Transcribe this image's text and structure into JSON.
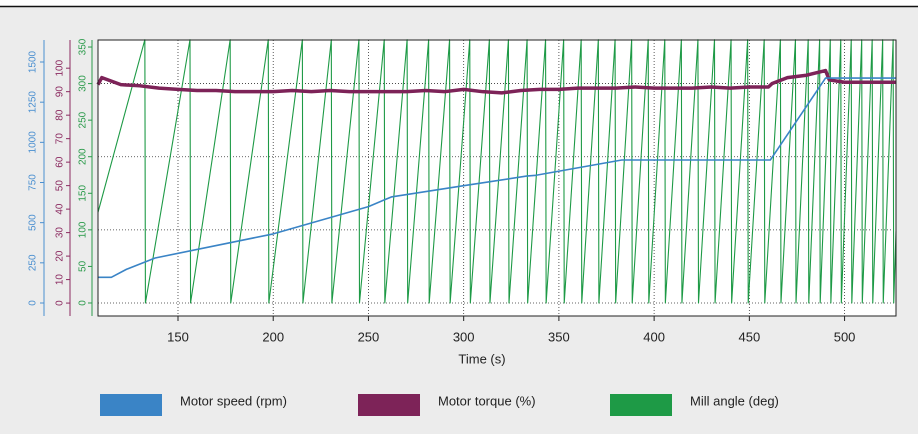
{
  "chart_data": {
    "type": "line",
    "xlabel": "Time (s)",
    "xlim": [
      108,
      527
    ],
    "xticks": [
      150,
      200,
      250,
      300,
      350,
      400,
      450,
      500
    ],
    "ylim": [
      -81,
      1637
    ],
    "yticks": [
      0,
      250,
      500,
      750,
      1000,
      1250,
      1500
    ],
    "y2lim": [
      -5.5,
      112
    ],
    "y2ticks": [
      0,
      10,
      20,
      30,
      40,
      50,
      60,
      70,
      80,
      90,
      100
    ],
    "y3lim": [
      -17.8,
      359.6
    ],
    "y3ticks": [
      0,
      50,
      100,
      150,
      200,
      250,
      300,
      350
    ],
    "grid": true,
    "legend": "bottom",
    "series": [
      {
        "name": "Motor speed (rpm)",
        "color": "#3a84c6",
        "axis": "y",
        "x": [
          108,
          115,
          123,
          138,
          200,
          250,
          262,
          300,
          333,
          338,
          383,
          461,
          490,
          527
        ],
        "values": [
          160,
          160,
          210,
          280,
          430,
          600,
          660,
          730,
          790,
          795,
          890,
          890,
          1400,
          1400
        ]
      },
      {
        "name": "Motor torque (%)",
        "color": "#7d2358",
        "axis": "y2",
        "x": [
          108,
          110,
          120,
          130,
          140,
          150,
          160,
          170,
          180,
          190,
          200,
          210,
          220,
          230,
          240,
          250,
          260,
          270,
          280,
          290,
          300,
          310,
          320,
          330,
          340,
          350,
          360,
          370,
          380,
          390,
          400,
          410,
          420,
          430,
          440,
          450,
          460,
          462,
          470,
          480,
          490,
          492,
          500,
          510,
          520,
          527
        ],
        "values": [
          93,
          96,
          93,
          92.5,
          91.5,
          91,
          90.5,
          90.5,
          90,
          90,
          90,
          90.5,
          90,
          90.5,
          90,
          90,
          90,
          90,
          90.5,
          90,
          91,
          90,
          89.5,
          90.5,
          91,
          91,
          91.5,
          91.5,
          91.5,
          92,
          91.5,
          91.5,
          91.5,
          92,
          91.5,
          92,
          92,
          93.5,
          96,
          97,
          99,
          95,
          94,
          94,
          94,
          94
        ]
      },
      {
        "name": "Mill angle (deg)",
        "color": "#1e9a46",
        "axis": "y3",
        "x": [
          108,
          132.6,
          132.9,
          156.3,
          156.6,
          177.4,
          177.7,
          197.4,
          197.7,
          215.3,
          215.6,
          230.5,
          230.8,
          245,
          245.3,
          258.3,
          258.6,
          270.3,
          270.6,
          281.6,
          281.9,
          292.6,
          292.9,
          303.2,
          303.5,
          313.5,
          313.8,
          323.5,
          323.8,
          333.3,
          333.6,
          343,
          343.3,
          352.5,
          352.8,
          361.7,
          362,
          370.7,
          371,
          379.5,
          379.8,
          388.2,
          388.5,
          396.9,
          397.2,
          405.6,
          405.9,
          414.3,
          414.6,
          423,
          423.3,
          431.7,
          432,
          440.4,
          440.7,
          449.1,
          449.4,
          457.8,
          458.1,
          466.3,
          466.6,
          474.2,
          474.5,
          480.9,
          481.2,
          486.9,
          487.2,
          492.5,
          492.8,
          498,
          498.3,
          503.5,
          503.8,
          509,
          509.3,
          514.5,
          514.8,
          520,
          520.3,
          525.5,
          525.8,
          527
        ],
        "values": [
          124,
          360,
          0,
          360,
          0,
          360,
          0,
          360,
          0,
          360,
          0,
          360,
          0,
          360,
          0,
          360,
          0,
          360,
          0,
          360,
          0,
          360,
          0,
          360,
          0,
          360,
          0,
          360,
          0,
          360,
          0,
          360,
          0,
          360,
          0,
          360,
          0,
          360,
          0,
          360,
          0,
          360,
          0,
          360,
          0,
          360,
          0,
          360,
          0,
          360,
          0,
          360,
          0,
          360,
          0,
          360,
          0,
          360,
          0,
          360,
          0,
          360,
          0,
          360,
          0,
          360,
          0,
          360,
          0,
          360,
          0,
          360,
          0,
          360,
          0,
          360,
          0,
          360,
          0,
          360,
          0,
          98
        ]
      }
    ]
  }
}
